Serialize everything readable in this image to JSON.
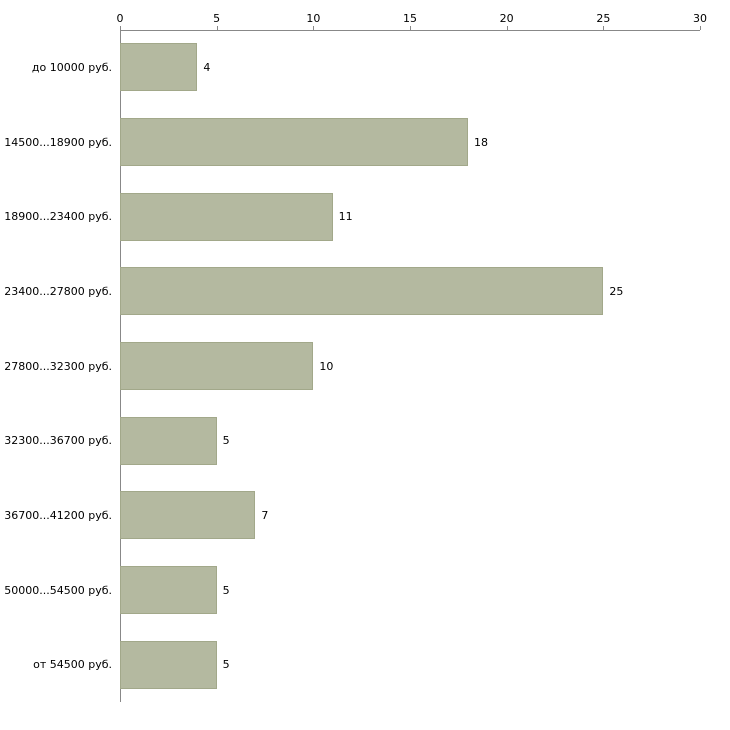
{
  "chart_data": {
    "type": "bar",
    "orientation": "horizontal",
    "title": "",
    "xlabel": "",
    "ylabel": "",
    "categories": [
      "до 10000 руб.",
      "14500...18900 руб.",
      "18900...23400 руб.",
      "23400...27800 руб.",
      "27800...32300 руб.",
      "32300...36700 руб.",
      "36700...41200 руб.",
      "50000...54500 руб.",
      "от 54500 руб."
    ],
    "values": [
      4,
      18,
      11,
      25,
      10,
      5,
      7,
      5,
      5
    ],
    "xlim": [
      0,
      30
    ],
    "xticks": [
      0,
      5,
      10,
      15,
      20,
      25,
      30
    ],
    "grid": false,
    "legend": false,
    "bar_color": "#b4b9a0",
    "bar_border_color": "#a2a88a",
    "axis_color": "#888888",
    "background_color": "#ffffff"
  }
}
